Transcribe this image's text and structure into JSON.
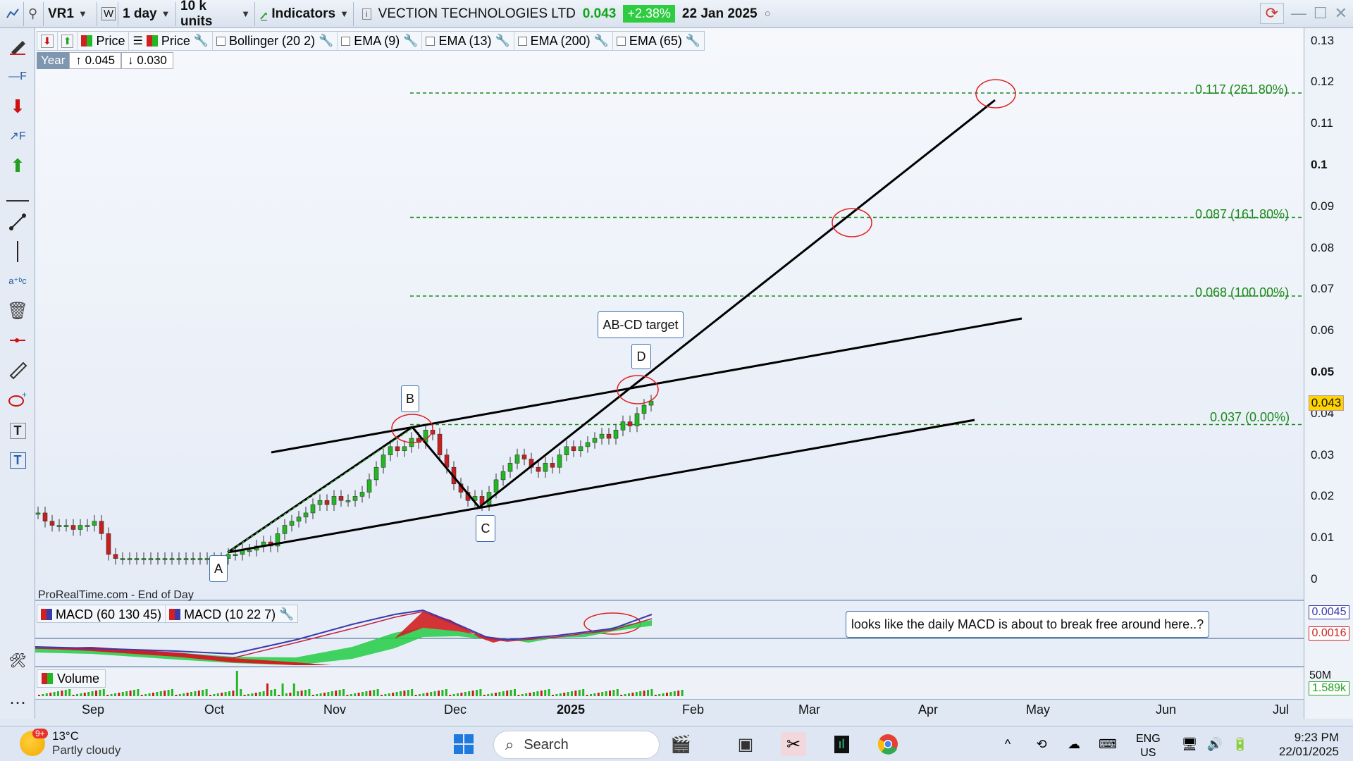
{
  "toolbar": {
    "symbol": "VR1",
    "interval": "1 day",
    "units": "10 k units",
    "indicators_label": "Indicators",
    "company": "VECTION TECHNOLOGIES LTD",
    "last_price": "0.043",
    "change_pct": "+2.38%",
    "date": "22 Jan 2025"
  },
  "indicator_bar": {
    "price1": "Price",
    "price2": "Price",
    "items": [
      "Bollinger (20 2)",
      "EMA (9)",
      "EMA (13)",
      "EMA (200)",
      "EMA (65)"
    ]
  },
  "year_box": {
    "label": "Year",
    "high": "↑ 0.045",
    "low": "↓ 0.030"
  },
  "source": "ProRealTime.com - End of Day",
  "price_axis": {
    "ticks": [
      "0.13",
      "0.12",
      "0.11",
      "0.1",
      "0.09",
      "0.08",
      "0.07",
      "0.06",
      "0.05",
      "0.04",
      "0.03",
      "0.02",
      "0.01",
      "0"
    ],
    "current": "0.043"
  },
  "fib_levels": [
    {
      "label": "0.117 (261.80%)",
      "value": 0.117
    },
    {
      "label": "0.087 (161.80%)",
      "value": 0.087
    },
    {
      "label": "0.068 (100.00%)",
      "value": 0.068
    },
    {
      "label": "0.037 (0.00%)",
      "value": 0.037
    }
  ],
  "pattern_labels": {
    "a": "A",
    "b": "B",
    "c": "C",
    "d": "D",
    "target": "AB-CD target"
  },
  "macd": {
    "label1": "MACD (60 130 45)",
    "label2": "MACD (10 22 7)",
    "value1": "0.0045",
    "value2": "0.0016",
    "callout": "looks like the daily MACD is about to break free around here..?"
  },
  "volume": {
    "label": "Volume",
    "axis_top": "50M",
    "value": "1.589k"
  },
  "x_axis": {
    "labels": [
      "Sep",
      "Oct",
      "Nov",
      "Dec",
      "2025",
      "Feb",
      "Mar",
      "Apr",
      "May",
      "Jun",
      "Jul"
    ]
  },
  "taskbar": {
    "temp": "13°C",
    "weather": "Partly cloudy",
    "badge": "9+",
    "search": "Search",
    "lang1": "ENG",
    "lang2": "US",
    "time": "9:23 PM",
    "date": "22/01/2025"
  },
  "colors": {
    "up_candle": "#22b822",
    "down_candle": "#c81e1e",
    "fib_line": "#1a8a1a",
    "trend_line": "#000000",
    "circle": "#e02020"
  }
}
